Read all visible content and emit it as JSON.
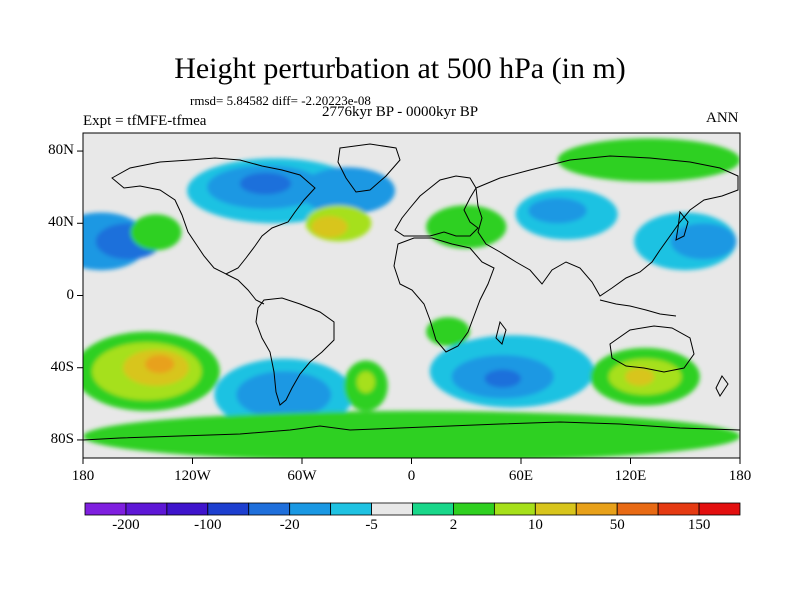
{
  "title": "Height perturbation at 500 hPa (in m)",
  "rmsd_text": "rmsd= 5.84582 diff= -2.20223e-08",
  "period_text": "2776kyr BP - 0000kyr BP",
  "expt_text": "Expt = tfMFE-tfmea",
  "season_text": "ANN",
  "map": {
    "lon_range": [
      -180,
      180
    ],
    "lat_range": [
      -90,
      90
    ],
    "background_color": "#e8e8e8",
    "y_ticks": [
      {
        "lat": 80,
        "label": "80N"
      },
      {
        "lat": 40,
        "label": "40N"
      },
      {
        "lat": 0,
        "label": "0"
      },
      {
        "lat": -40,
        "label": "40S"
      },
      {
        "lat": -80,
        "label": "80S"
      }
    ],
    "x_ticks": [
      {
        "lon": -180,
        "label": "180"
      },
      {
        "lon": -120,
        "label": "120W"
      },
      {
        "lon": -60,
        "label": "60W"
      },
      {
        "lon": 0,
        "label": "0"
      },
      {
        "lon": 60,
        "label": "60E"
      },
      {
        "lon": 120,
        "label": "120E"
      },
      {
        "lon": 180,
        "label": "180"
      }
    ]
  },
  "colorbar": {
    "colors": [
      "#7f1fdf",
      "#5e17d6",
      "#3f14cc",
      "#1d3fcf",
      "#1f6fdb",
      "#1a98e3",
      "#1fc2e2",
      "#e8e8e8",
      "#19d78a",
      "#2fd020",
      "#a6e01a",
      "#d8c51c",
      "#e8a11a",
      "#e86a14",
      "#e53a12",
      "#e30f0f"
    ],
    "labels": [
      {
        "index": 1,
        "text": "-200"
      },
      {
        "index": 3,
        "text": "-100"
      },
      {
        "index": 5,
        "text": "-20"
      },
      {
        "index": 7,
        "text": "-5"
      },
      {
        "index": 9,
        "text": "2"
      },
      {
        "index": 11,
        "text": "10"
      },
      {
        "index": 13,
        "text": "50"
      },
      {
        "index": 15,
        "text": "150"
      }
    ]
  },
  "anomalies": [
    {
      "lon": -170,
      "lat": 30,
      "rx": 26,
      "ry": 16,
      "level": 5
    },
    {
      "lon": -155,
      "lat": 30,
      "rx": 18,
      "ry": 10,
      "level": 4
    },
    {
      "lon": -140,
      "lat": 35,
      "rx": 14,
      "ry": 10,
      "level": 9
    },
    {
      "lon": -75,
      "lat": 58,
      "rx": 48,
      "ry": 18,
      "level": 6
    },
    {
      "lon": -80,
      "lat": 60,
      "rx": 32,
      "ry": 12,
      "level": 5
    },
    {
      "lon": -80,
      "lat": 62,
      "rx": 14,
      "ry": 6,
      "level": 4
    },
    {
      "lon": -35,
      "lat": 58,
      "rx": 26,
      "ry": 13,
      "level": 5
    },
    {
      "lon": -40,
      "lat": 40,
      "rx": 18,
      "ry": 10,
      "level": 10
    },
    {
      "lon": -45,
      "lat": 38,
      "rx": 10,
      "ry": 6,
      "level": 11
    },
    {
      "lon": 30,
      "lat": 38,
      "rx": 22,
      "ry": 12,
      "level": 9
    },
    {
      "lon": 85,
      "lat": 45,
      "rx": 28,
      "ry": 14,
      "level": 6
    },
    {
      "lon": 80,
      "lat": 47,
      "rx": 16,
      "ry": 7,
      "level": 5
    },
    {
      "lon": 150,
      "lat": 30,
      "rx": 28,
      "ry": 16,
      "level": 6
    },
    {
      "lon": 160,
      "lat": 30,
      "rx": 18,
      "ry": 10,
      "level": 5
    },
    {
      "lon": 130,
      "lat": 75,
      "rx": 50,
      "ry": 12,
      "level": 9
    },
    {
      "lon": -145,
      "lat": -42,
      "rx": 40,
      "ry": 22,
      "level": 9
    },
    {
      "lon": -145,
      "lat": -42,
      "rx": 30,
      "ry": 16,
      "level": 10
    },
    {
      "lon": -140,
      "lat": -40,
      "rx": 18,
      "ry": 10,
      "level": 11
    },
    {
      "lon": -138,
      "lat": -38,
      "rx": 8,
      "ry": 5,
      "level": 12
    },
    {
      "lon": -70,
      "lat": -55,
      "rx": 38,
      "ry": 20,
      "level": 6
    },
    {
      "lon": -70,
      "lat": -55,
      "rx": 26,
      "ry": 13,
      "level": 5
    },
    {
      "lon": -25,
      "lat": -50,
      "rx": 12,
      "ry": 14,
      "level": 9
    },
    {
      "lon": -25,
      "lat": -48,
      "rx": 5,
      "ry": 6,
      "level": 10
    },
    {
      "lon": 20,
      "lat": -20,
      "rx": 12,
      "ry": 8,
      "level": 9
    },
    {
      "lon": 55,
      "lat": -42,
      "rx": 45,
      "ry": 20,
      "level": 6
    },
    {
      "lon": 50,
      "lat": -45,
      "rx": 28,
      "ry": 12,
      "level": 5
    },
    {
      "lon": 50,
      "lat": -46,
      "rx": 10,
      "ry": 5,
      "level": 4
    },
    {
      "lon": 128,
      "lat": -45,
      "rx": 30,
      "ry": 16,
      "level": 9
    },
    {
      "lon": 128,
      "lat": -45,
      "rx": 20,
      "ry": 10,
      "level": 10
    },
    {
      "lon": 125,
      "lat": -45,
      "rx": 8,
      "ry": 5,
      "level": 11
    },
    {
      "lon": 0,
      "lat": -78,
      "rx": 180,
      "ry": 14,
      "level": 9
    }
  ]
}
